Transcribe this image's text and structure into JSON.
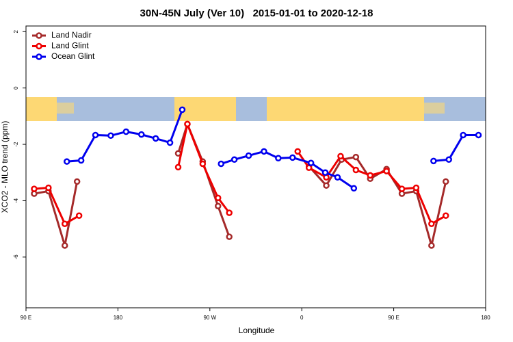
{
  "chart_data": {
    "type": "line",
    "title": "30N-45N July (Ver 10)   2015-01-01 to 2020-12-18",
    "xlabel": "Longitude",
    "ylabel": "XCO2 - MLO trend (ppm)",
    "xlim": [
      90,
      540
    ],
    "ylim": [
      -7.8,
      2.2
    ],
    "xticks": [
      {
        "value": 90,
        "label": "90 E"
      },
      {
        "value": 180,
        "label": "180"
      },
      {
        "value": 270,
        "label": "90 W"
      },
      {
        "value": 360,
        "label": "0"
      },
      {
        "value": 450,
        "label": "90 E"
      },
      {
        "value": 540,
        "label": "180"
      }
    ],
    "yticks": [
      -6,
      -4,
      -2,
      0,
      2
    ],
    "legend": "top-left",
    "series": [
      {
        "name": "Land Nadir",
        "color": "#a52a2a",
        "x": [
          98,
          112,
          128,
          140,
          null,
          239,
          248,
          263,
          278,
          289,
          null,
          367,
          384,
          399,
          413,
          427,
          443,
          458,
          472,
          487,
          501
        ],
        "values": [
          -3.75,
          -3.66,
          -5.59,
          -3.32,
          null,
          -2.32,
          -1.28,
          -2.61,
          -4.19,
          -5.28,
          null,
          -2.78,
          -3.46,
          -2.54,
          -2.45,
          -3.22,
          -2.88,
          -3.75,
          -3.66,
          -5.59,
          -3.32
        ]
      },
      {
        "name": "Land Glint",
        "color": "#ee0000",
        "x": [
          98,
          112,
          128,
          142,
          null,
          239,
          248,
          263,
          278,
          289,
          null,
          356,
          367,
          384,
          398,
          413,
          427,
          443,
          458,
          472,
          487,
          501
        ],
        "values": [
          -3.58,
          -3.54,
          -4.82,
          -4.53,
          null,
          -2.81,
          -1.28,
          -2.69,
          -3.9,
          -4.43,
          null,
          -2.25,
          -2.83,
          -3.17,
          -2.42,
          -2.91,
          -3.1,
          -2.95,
          -3.58,
          -3.54,
          -4.82,
          -4.53
        ]
      },
      {
        "name": "Ocean Glint",
        "color": "#0000ee",
        "x": [
          130,
          144,
          158,
          173,
          188,
          203,
          217,
          231,
          243,
          null,
          281,
          294,
          308,
          323,
          337,
          351,
          369,
          383,
          395,
          411,
          null,
          489,
          504,
          518,
          533
        ],
        "values": [
          -2.61,
          -2.57,
          -1.67,
          -1.69,
          -1.55,
          -1.65,
          -1.79,
          -1.94,
          -0.77,
          null,
          -2.69,
          -2.54,
          -2.4,
          -2.25,
          -2.49,
          -2.47,
          -2.66,
          -3.0,
          -3.17,
          -3.56,
          null,
          -2.59,
          -2.54,
          -1.67,
          -1.67
        ]
      }
    ]
  }
}
